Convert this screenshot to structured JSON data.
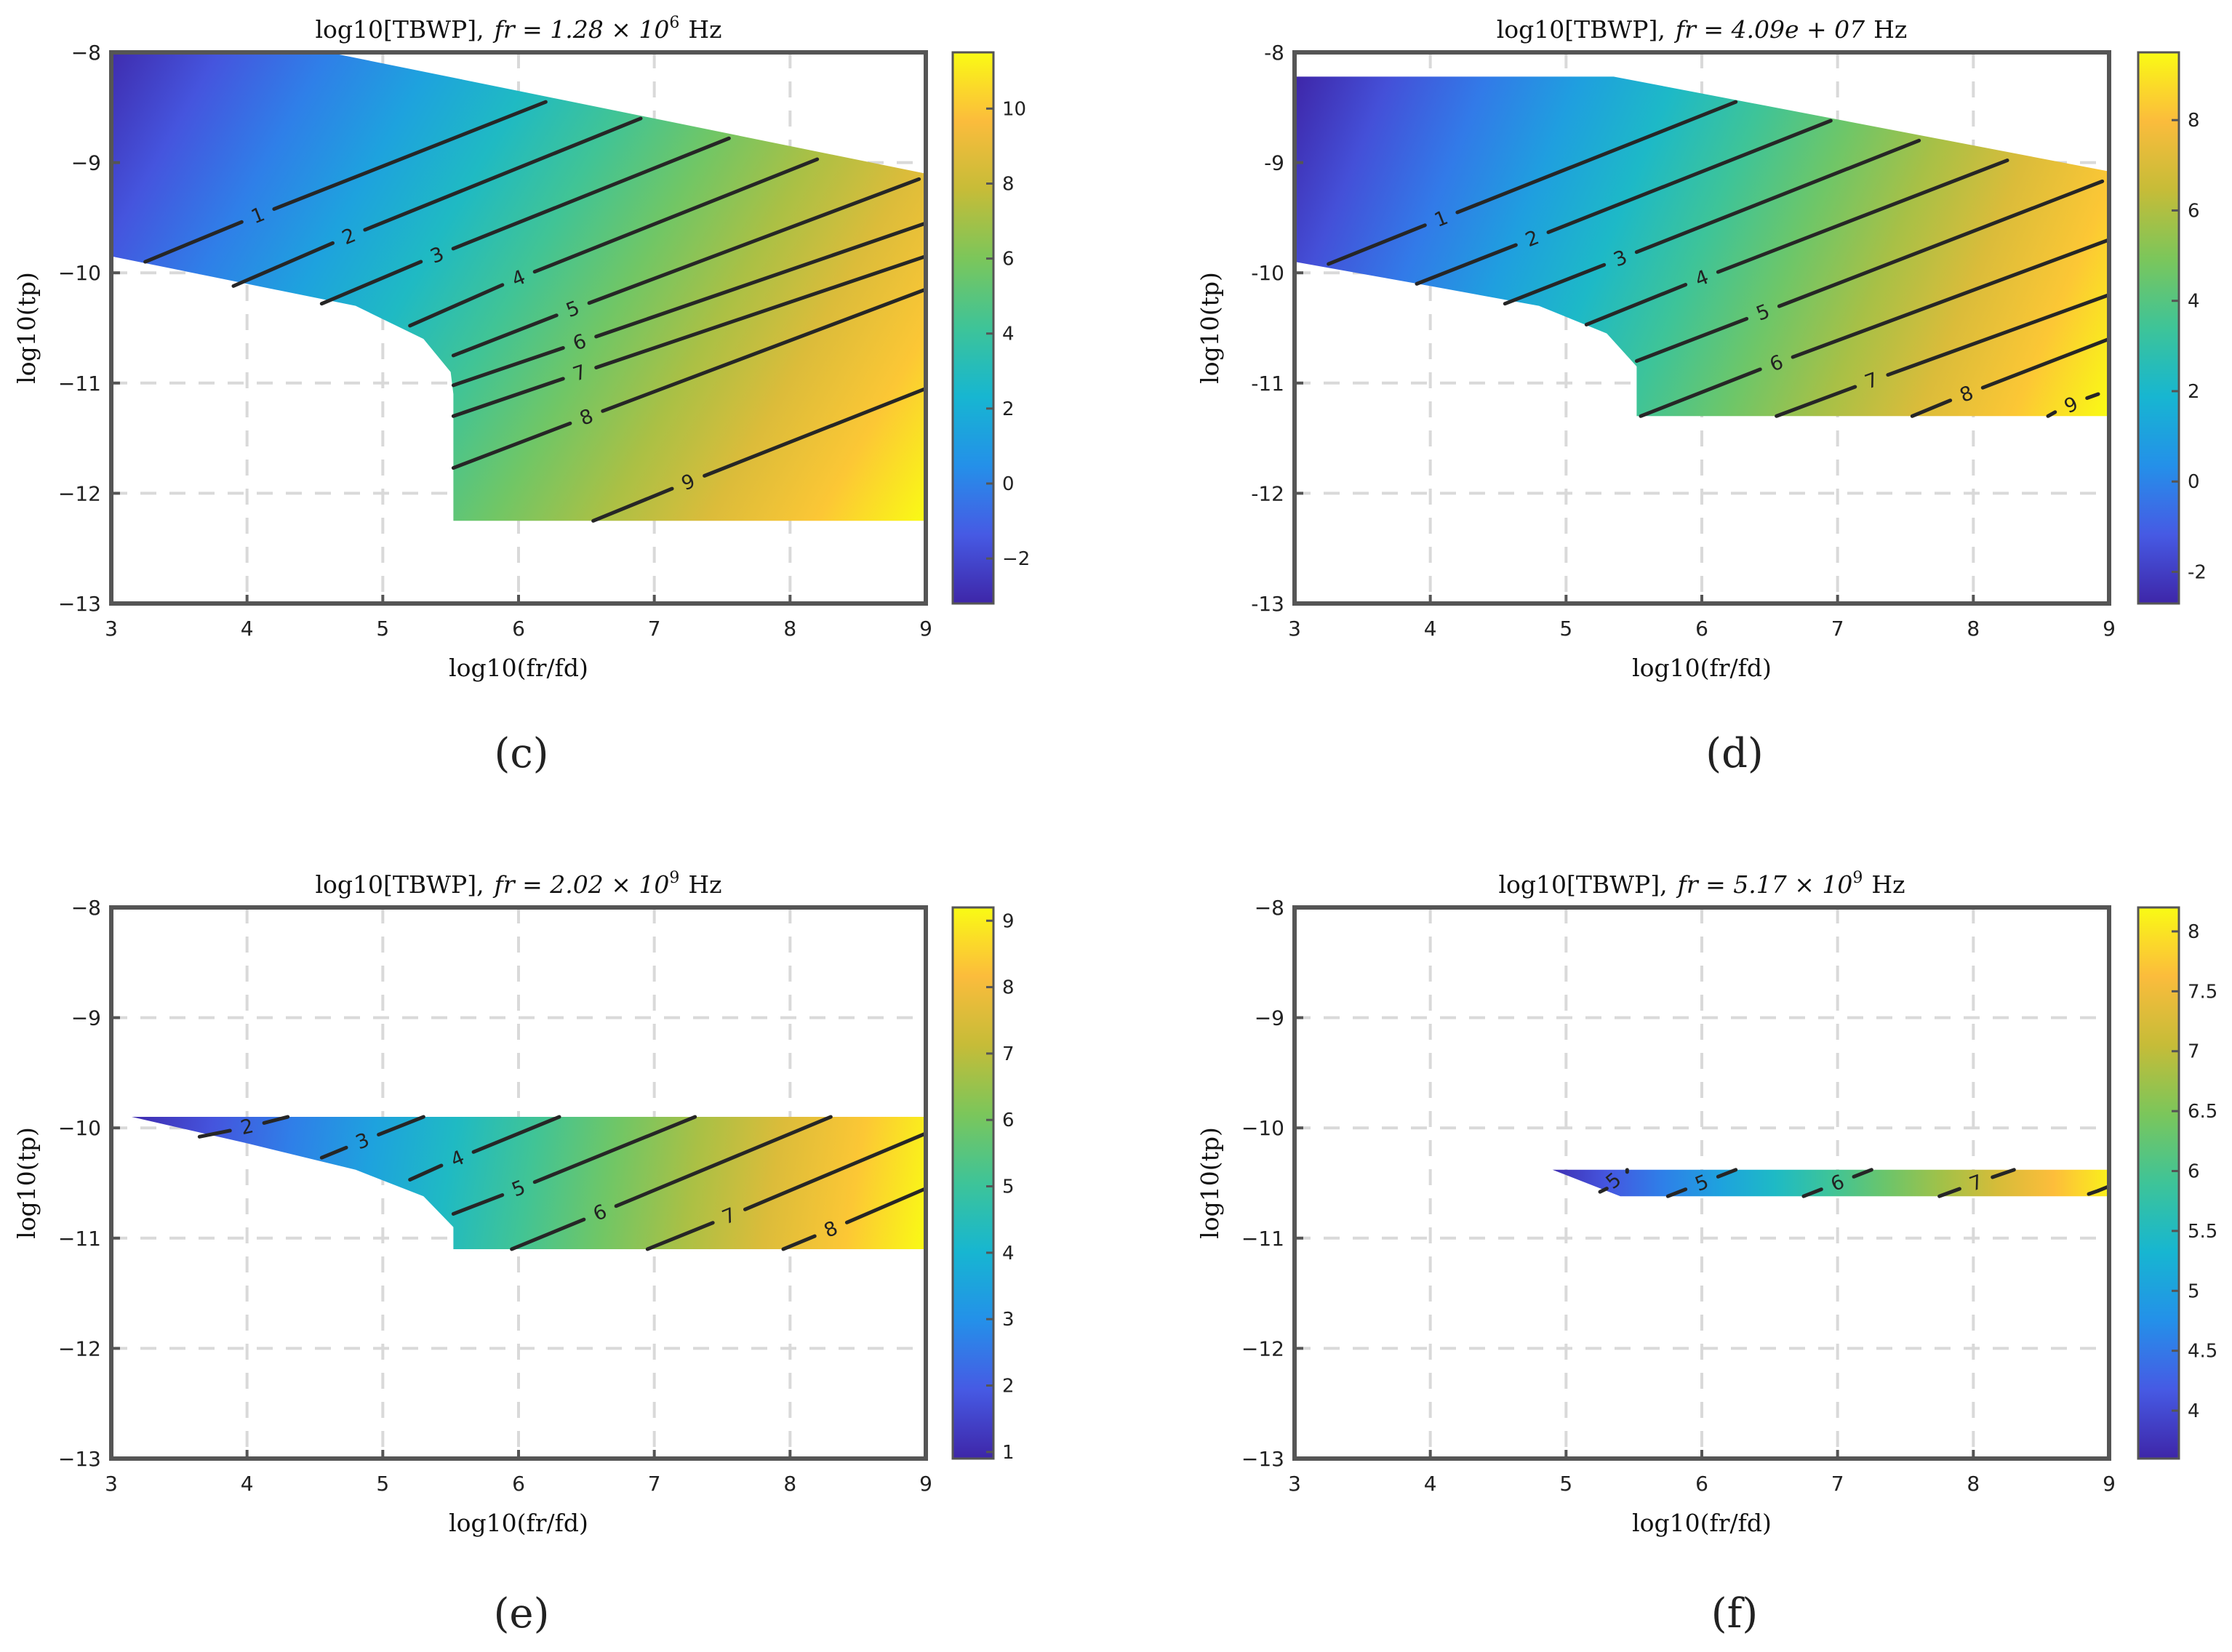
{
  "chart_data": [
    {
      "panel": "(c)",
      "type": "heatmap",
      "title_main": "log10[TBWP],",
      "title_param": "fr = 1.28 × 10",
      "title_exp": "6",
      "title_unit": "Hz",
      "xlabel": "log10(fr/fd)",
      "ylabel": "log10(tp)",
      "xlim": [
        3,
        9
      ],
      "ylim": [
        -13,
        -8
      ],
      "xticks": [
        "3",
        "4",
        "5",
        "6",
        "7",
        "8",
        "9"
      ],
      "yticks": [
        "−8",
        "−9",
        "−10",
        "−11",
        "−12",
        "−13"
      ],
      "clim": [
        -3.2,
        11.5
      ],
      "colorbar_ticks": [
        "10",
        "8",
        "6",
        "4",
        "2",
        "0",
        "−2"
      ],
      "colorbar_tick_values": [
        10,
        8,
        6,
        4,
        2,
        0,
        -2
      ],
      "region": [
        [
          3,
          -8
        ],
        [
          4.6,
          -8
        ],
        [
          9,
          -9.1
        ],
        [
          9,
          -12.25
        ],
        [
          5.52,
          -12.25
        ],
        [
          5.52,
          -11.1
        ],
        [
          5.5,
          -10.9
        ],
        [
          5.3,
          -10.6
        ],
        [
          4.8,
          -10.3
        ],
        [
          4.0,
          -10.1
        ],
        [
          3,
          -9.85
        ]
      ],
      "grad": [
        [
          3.0,
          -8.0,
          -3.0
        ],
        [
          9.0,
          -12.25,
          11.5
        ]
      ],
      "contours": [
        {
          "label": "1",
          "x1": 3.25,
          "y1": -9.9,
          "x2": 6.2,
          "y2": -8.45,
          "lx": 4.08,
          "ly": -9.48
        },
        {
          "label": "2",
          "x1": 3.9,
          "y1": -10.12,
          "x2": 6.9,
          "y2": -8.6,
          "lx": 4.75,
          "ly": -9.67
        },
        {
          "label": "3",
          "x1": 4.55,
          "y1": -10.28,
          "x2": 7.55,
          "y2": -8.78,
          "lx": 5.4,
          "ly": -9.84
        },
        {
          "label": "4",
          "x1": 5.2,
          "y1": -10.48,
          "x2": 8.2,
          "y2": -8.97,
          "lx": 6.0,
          "ly": -10.05
        },
        {
          "label": "5",
          "x1": 5.52,
          "y1": -10.75,
          "x2": 8.95,
          "y2": -9.15,
          "lx": 6.4,
          "ly": -10.33
        },
        {
          "label": "6",
          "x1": 5.52,
          "y1": -11.02,
          "x2": 9.0,
          "y2": -9.55,
          "lx": 6.45,
          "ly": -10.63
        },
        {
          "label": "7",
          "x1": 5.52,
          "y1": -11.3,
          "x2": 9.0,
          "y2": -9.85,
          "lx": 6.45,
          "ly": -10.91
        },
        {
          "label": "8",
          "x1": 5.52,
          "y1": -11.77,
          "x2": 9.0,
          "y2": -10.15,
          "lx": 6.5,
          "ly": -11.31
        },
        {
          "label": "9",
          "x1": 6.55,
          "y1": -12.25,
          "x2": 9.0,
          "y2": -11.05,
          "lx": 7.25,
          "ly": -11.9
        }
      ]
    },
    {
      "panel": "(d)",
      "type": "heatmap",
      "title_main": "log10[TBWP],",
      "title_param": "fr = 4.09e + 07",
      "title_exp": "",
      "title_unit": "Hz",
      "xlabel": "log10(fr/fd)",
      "ylabel": "log10(tp)",
      "xlim": [
        3,
        9
      ],
      "ylim": [
        -13,
        -8
      ],
      "xticks": [
        "3",
        "4",
        "5",
        "6",
        "7",
        "8",
        "9"
      ],
      "yticks": [
        "-8",
        "-9",
        "-10",
        "-11",
        "-12",
        "-13"
      ],
      "clim": [
        -2.7,
        9.5
      ],
      "colorbar_ticks": [
        "8",
        "6",
        "4",
        "2",
        "0",
        "-2"
      ],
      "colorbar_tick_values": [
        8,
        6,
        4,
        2,
        0,
        -2
      ],
      "region": [
        [
          3,
          -8.22
        ],
        [
          5.35,
          -8.22
        ],
        [
          9,
          -9.08
        ],
        [
          9,
          -11.3
        ],
        [
          5.52,
          -11.3
        ],
        [
          5.52,
          -10.85
        ],
        [
          5.3,
          -10.55
        ],
        [
          4.8,
          -10.3
        ],
        [
          4.0,
          -10.12
        ],
        [
          3,
          -9.9
        ]
      ],
      "grad": [
        [
          3.0,
          -8.22,
          -2.7
        ],
        [
          9.0,
          -11.3,
          9.5
        ]
      ],
      "contours": [
        {
          "label": "1",
          "x1": 3.25,
          "y1": -9.92,
          "x2": 6.25,
          "y2": -8.45,
          "lx": 4.08,
          "ly": -9.51
        },
        {
          "label": "2",
          "x1": 3.9,
          "y1": -10.1,
          "x2": 6.95,
          "y2": -8.62,
          "lx": 4.75,
          "ly": -9.69
        },
        {
          "label": "3",
          "x1": 4.55,
          "y1": -10.28,
          "x2": 7.6,
          "y2": -8.8,
          "lx": 5.4,
          "ly": -9.87
        },
        {
          "label": "4",
          "x1": 5.15,
          "y1": -10.47,
          "x2": 8.25,
          "y2": -8.98,
          "lx": 6.0,
          "ly": -10.05
        },
        {
          "label": "5",
          "x1": 5.52,
          "y1": -10.8,
          "x2": 8.95,
          "y2": -9.17,
          "lx": 6.45,
          "ly": -10.36
        },
        {
          "label": "6",
          "x1": 5.55,
          "y1": -11.3,
          "x2": 9.0,
          "y2": -9.7,
          "lx": 6.55,
          "ly": -10.82
        },
        {
          "label": "7",
          "x1": 6.55,
          "y1": -11.3,
          "x2": 9.0,
          "y2": -10.2,
          "lx": 7.25,
          "ly": -10.98
        },
        {
          "label": "8",
          "x1": 7.55,
          "y1": -11.3,
          "x2": 9.0,
          "y2": -10.6,
          "lx": 7.95,
          "ly": -11.1
        },
        {
          "label": "9",
          "x1": 8.55,
          "y1": -11.3,
          "x2": 8.92,
          "y2": -11.1,
          "lx": 8.72,
          "ly": -11.2
        }
      ]
    },
    {
      "panel": "(e)",
      "type": "heatmap",
      "title_main": "log10[TBWP],",
      "title_param": "fr = 2.02 × 10",
      "title_exp": "9",
      "title_unit": "Hz",
      "xlabel": "log10(fr/fd)",
      "ylabel": "log10(tp)",
      "xlim": [
        3,
        9
      ],
      "ylim": [
        -13,
        -8
      ],
      "xticks": [
        "3",
        "4",
        "5",
        "6",
        "7",
        "8",
        "9"
      ],
      "yticks": [
        "−8",
        "−9",
        "−10",
        "−11",
        "−12",
        "−13"
      ],
      "clim": [
        0.9,
        9.2
      ],
      "colorbar_ticks": [
        "9",
        "8",
        "7",
        "6",
        "5",
        "4",
        "3",
        "2",
        "1"
      ],
      "colorbar_tick_values": [
        9,
        8,
        7,
        6,
        5,
        4,
        3,
        2,
        1
      ],
      "region": [
        [
          3.15,
          -9.9
        ],
        [
          9,
          -9.9
        ],
        [
          9,
          -11.1
        ],
        [
          5.52,
          -11.1
        ],
        [
          5.52,
          -10.9
        ],
        [
          5.3,
          -10.62
        ],
        [
          4.8,
          -10.38
        ],
        [
          4.0,
          -10.14
        ],
        [
          3.15,
          -9.9
        ]
      ],
      "grad": [
        [
          3.15,
          -9.9,
          1.0
        ],
        [
          9.0,
          -11.1,
          9.2
        ]
      ],
      "contours": [
        {
          "label": "2",
          "x1": 3.65,
          "y1": -10.08,
          "x2": 4.3,
          "y2": -9.9,
          "lx": 4.0,
          "ly": -9.99
        },
        {
          "label": "3",
          "x1": 4.55,
          "y1": -10.27,
          "x2": 5.3,
          "y2": -9.9,
          "lx": 4.85,
          "ly": -10.12
        },
        {
          "label": "4",
          "x1": 5.2,
          "y1": -10.47,
          "x2": 6.3,
          "y2": -9.9,
          "lx": 5.55,
          "ly": -10.28
        },
        {
          "label": "5",
          "x1": 5.52,
          "y1": -10.78,
          "x2": 7.3,
          "y2": -9.9,
          "lx": 6.0,
          "ly": -10.55
        },
        {
          "label": "6",
          "x1": 5.95,
          "y1": -11.1,
          "x2": 8.3,
          "y2": -9.9,
          "lx": 6.6,
          "ly": -10.77
        },
        {
          "label": "7",
          "x1": 6.95,
          "y1": -11.1,
          "x2": 9.0,
          "y2": -10.05,
          "lx": 7.55,
          "ly": -10.8
        },
        {
          "label": "8",
          "x1": 7.95,
          "y1": -11.1,
          "x2": 9.0,
          "y2": -10.55,
          "lx": 8.3,
          "ly": -10.92
        }
      ]
    },
    {
      "panel": "(f)",
      "type": "heatmap",
      "title_main": "log10[TBWP],",
      "title_param": "fr = 5.17 × 10",
      "title_exp": "9",
      "title_unit": "Hz",
      "xlabel": "log10(fr/fd)",
      "ylabel": "log10(tp)",
      "xlim": [
        3,
        9
      ],
      "ylim": [
        -13,
        -8
      ],
      "xticks": [
        "3",
        "4",
        "5",
        "6",
        "7",
        "8",
        "9"
      ],
      "yticks": [
        "−8",
        "−9",
        "−10",
        "−11",
        "−12",
        "−13"
      ],
      "clim": [
        3.6,
        8.2
      ],
      "colorbar_ticks": [
        "8",
        "7.5",
        "7",
        "6.5",
        "6",
        "5.5",
        "5",
        "4.5",
        "4"
      ],
      "colorbar_tick_values": [
        8,
        7.5,
        7,
        6.5,
        6,
        5.5,
        5,
        4.5,
        4
      ],
      "region": [
        [
          4.9,
          -10.38
        ],
        [
          9,
          -10.38
        ],
        [
          9,
          -10.62
        ],
        [
          5.4,
          -10.62
        ],
        [
          4.9,
          -10.38
        ]
      ],
      "grad": [
        [
          4.9,
          -10.5,
          3.7
        ],
        [
          9.0,
          -10.5,
          8.1
        ]
      ],
      "contours": [
        {
          "label": "5",
          "x1": 5.3,
          "y1": -10.55,
          "x2": 5.45,
          "y2": -10.4,
          "lx": 5.35,
          "ly": -10.48
        },
        {
          "label": "5",
          "x1": 5.75,
          "y1": -10.62,
          "x2": 6.25,
          "y2": -10.38,
          "lx": 6.0,
          "ly": -10.5
        },
        {
          "label": "6",
          "x1": 6.75,
          "y1": -10.62,
          "x2": 7.25,
          "y2": -10.38,
          "lx": 7.0,
          "ly": -10.5
        },
        {
          "label": "7",
          "x1": 7.75,
          "y1": -10.62,
          "x2": 8.3,
          "y2": -10.38,
          "lx": 8.02,
          "ly": -10.5
        },
        {
          "label": "",
          "x1": 8.85,
          "y1": -10.6,
          "x2": 9.0,
          "y2": -10.53,
          "lx": 8.92,
          "ly": -10.57
        }
      ]
    }
  ]
}
